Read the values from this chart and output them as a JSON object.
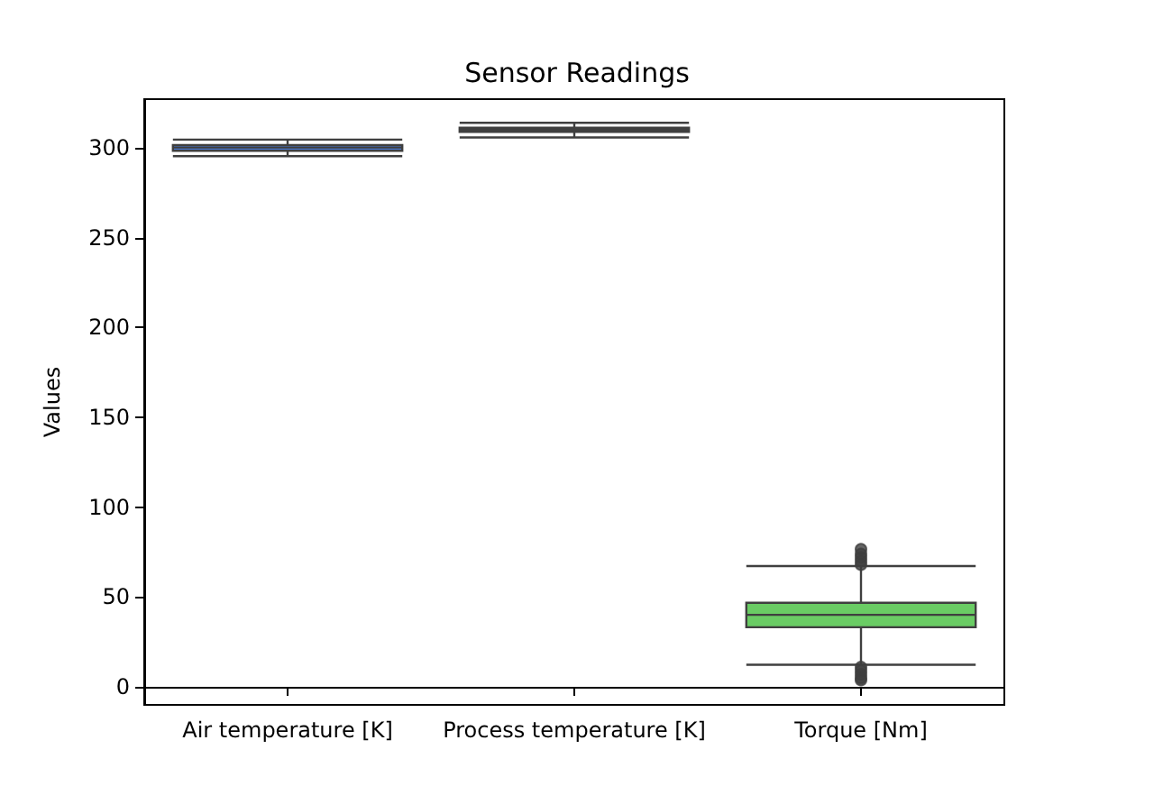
{
  "chart_data": {
    "type": "box",
    "title": "Sensor Readings",
    "ylabel": "Values",
    "categories": [
      "Air temperature [K]",
      "Process temperature [K]",
      "Torque [Nm]"
    ],
    "colors": [
      "#4878d0",
      "#ee854a",
      "#6acc64"
    ],
    "boxes": [
      {
        "low": 295.3,
        "q1": 298.3,
        "median": 300.1,
        "q3": 301.5,
        "high": 304.5
      },
      {
        "low": 305.7,
        "q1": 308.8,
        "median": 310.1,
        "q3": 311.1,
        "high": 313.8
      },
      {
        "low": 12.3,
        "q1": 33.2,
        "median": 40.1,
        "q3": 46.8,
        "high": 67.2,
        "outliers": [
          3.8,
          5,
          7,
          9,
          11,
          68,
          70,
          72,
          74,
          76.6
        ]
      }
    ],
    "ylim": [
      -10,
      327
    ],
    "yticks": [
      0,
      50,
      100,
      150,
      200,
      250,
      300
    ]
  }
}
